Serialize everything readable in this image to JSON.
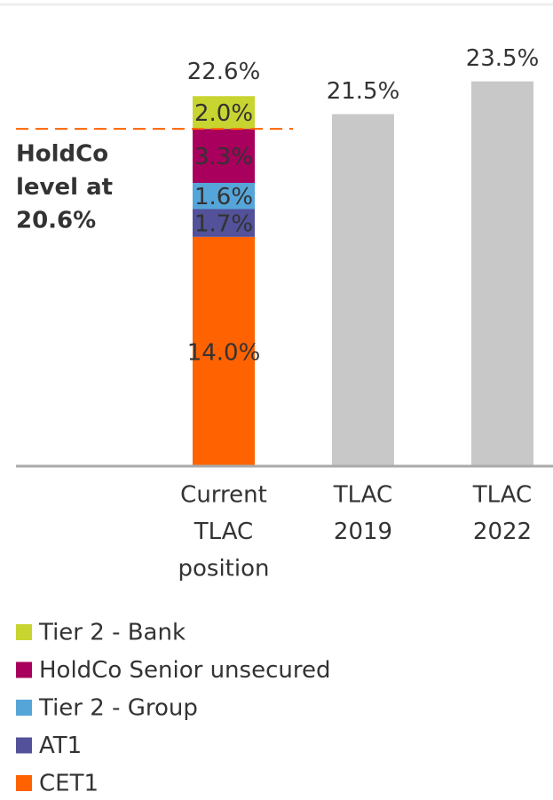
{
  "chart_data": {
    "type": "stacked_bar",
    "categories": [
      [
        "Current",
        "TLAC",
        "position"
      ],
      [
        "TLAC",
        "2019"
      ],
      [
        "TLAC",
        "2022"
      ]
    ],
    "series": [
      {
        "name": "CET1",
        "color": "#ff6200",
        "values": [
          14.0,
          null,
          null
        ],
        "value_labels": [
          "14.0%",
          null,
          null
        ]
      },
      {
        "name": "AT1",
        "color": "#525199",
        "values": [
          1.7,
          null,
          null
        ],
        "value_labels": [
          "1.7%",
          null,
          null
        ]
      },
      {
        "name": "Tier 2 - Group",
        "color": "#55a5d9",
        "values": [
          1.6,
          null,
          null
        ],
        "value_labels": [
          "1.6%",
          null,
          null
        ]
      },
      {
        "name": "HoldCo Senior unsecured",
        "color": "#a8005c",
        "values": [
          3.3,
          null,
          null
        ],
        "value_labels": [
          "3.3%",
          null,
          null
        ]
      },
      {
        "name": "Tier 2 - Bank",
        "color": "#c8d430",
        "values": [
          2.0,
          null,
          null
        ],
        "value_labels": [
          "2.0%",
          null,
          null
        ]
      }
    ],
    "requirement": {
      "color": "#c8c8c8",
      "values": [
        null,
        21.5,
        23.5
      ],
      "value_labels": [
        null,
        "21.5%",
        "23.5%"
      ]
    },
    "totals": [
      22.6,
      null,
      null
    ],
    "total_labels": [
      "22.6%",
      null,
      null
    ],
    "reference_line": {
      "value": 20.6,
      "color": "#ff6200",
      "lines": [
        "HoldCo",
        "level at",
        "20.6%"
      ]
    },
    "ylim": [
      0,
      25
    ]
  }
}
